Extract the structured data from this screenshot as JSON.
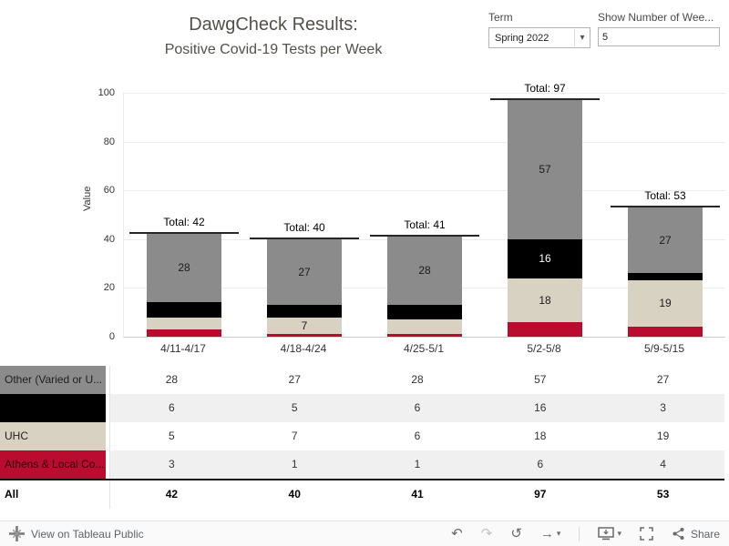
{
  "glyphs": {
    "undo": "↶",
    "redo": "↷",
    "reset": "↺",
    "forward": "→",
    "caret": "▾"
  },
  "header": {
    "title_line1": "DawgCheck Results:",
    "title_line2": "Positive Covid-19 Tests per Week"
  },
  "filters": {
    "term_label": "Term",
    "term_value": "Spring 2022",
    "weeks_label": "Show Number of Wee...",
    "weeks_value": "5"
  },
  "chart_data": {
    "type": "bar",
    "stacked": true,
    "title": "DawgCheck Results: Positive Covid-19 Tests per Week",
    "ylabel": "Value",
    "ylim": [
      0,
      100
    ],
    "yticks": [
      0,
      20,
      40,
      60,
      80,
      100
    ],
    "grid": true,
    "legend_position": "left-of-table",
    "categories": [
      "4/11-4/17",
      "4/18-4/24",
      "4/25-5/1",
      "5/2-5/8",
      "5/9-5/15"
    ],
    "series": [
      {
        "name": "Athens & Local Co...",
        "color": "#ba0c2f",
        "values": [
          3,
          1,
          1,
          6,
          4
        ]
      },
      {
        "name": "UHC",
        "color": "#d8d2c2",
        "values": [
          5,
          7,
          6,
          18,
          19
        ]
      },
      {
        "name": "",
        "color": "#000000",
        "values": [
          6,
          5,
          6,
          16,
          3
        ]
      },
      {
        "name": "Other (Varied or U...",
        "color": "#8b8b8b",
        "values": [
          28,
          27,
          28,
          57,
          27
        ]
      }
    ],
    "totals": [
      42,
      40,
      41,
      97,
      53
    ],
    "total_labels": [
      "Total: 42",
      "Total: 40",
      "Total: 41",
      "Total: 97",
      "Total: 53"
    ]
  },
  "table": {
    "rows": [
      {
        "label": "Other (Varied or U...",
        "bg": "#8b8b8b",
        "text": "#1f1f1f",
        "values": [
          "28",
          "27",
          "28",
          "57",
          "27"
        ]
      },
      {
        "label": "",
        "bg": "#000000",
        "text": "#ffffff",
        "values": [
          "6",
          "5",
          "6",
          "16",
          "3"
        ]
      },
      {
        "label": "UHC",
        "bg": "#d8d2c2",
        "text": "#1f1f1f",
        "values": [
          "5",
          "7",
          "6",
          "18",
          "19"
        ]
      },
      {
        "label": "Athens & Local Co...",
        "bg": "#ba0c2f",
        "text": "#2d030e",
        "values": [
          "3",
          "1",
          "1",
          "6",
          "4"
        ]
      },
      {
        "label": "All",
        "bg": "#ffffff",
        "text": "#000000",
        "values": [
          "42",
          "40",
          "41",
          "97",
          "53"
        ],
        "bold": true
      }
    ]
  },
  "footer": {
    "view_link": "View on Tableau Public",
    "share_label": "Share",
    "icon_names": [
      "undo",
      "redo",
      "reset",
      "forward",
      "download",
      "fullscreen",
      "share"
    ]
  }
}
